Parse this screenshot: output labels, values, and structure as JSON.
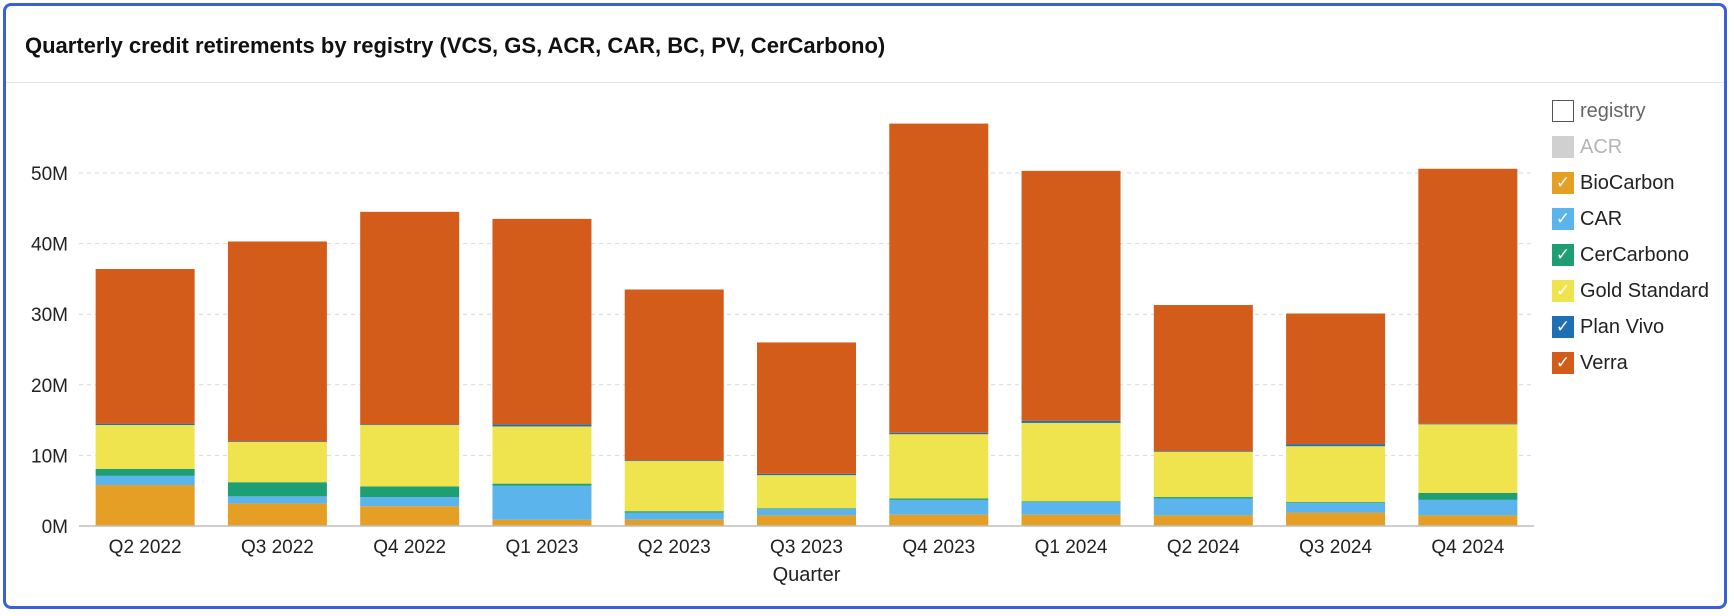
{
  "title": "Quarterly credit retirements by registry (VCS, GS, ACR, CAR, BC, PV, CerCarbono)",
  "legend": {
    "header": "registry",
    "items": [
      {
        "name": "ACR",
        "color": "#d0d0d0",
        "checked": false
      },
      {
        "name": "BioCarbon",
        "color": "#e69f25",
        "checked": true
      },
      {
        "name": "CAR",
        "color": "#5bb4ec",
        "checked": true
      },
      {
        "name": "CerCarbono",
        "color": "#1e9e73",
        "checked": true
      },
      {
        "name": "Gold Standard",
        "color": "#f0e44e",
        "checked": true
      },
      {
        "name": "Plan Vivo",
        "color": "#1f6fb5",
        "checked": true
      },
      {
        "name": "Verra",
        "color": "#d35c1a",
        "checked": true
      }
    ]
  },
  "check_glyph": "✓",
  "chart_data": {
    "type": "bar",
    "stacked": true,
    "xlabel": "Quarter",
    "ylabel": "",
    "ylim": [
      0,
      60
    ],
    "yticks": [
      0,
      10,
      20,
      30,
      40,
      50
    ],
    "ytick_labels": [
      "0M",
      "10M",
      "20M",
      "30M",
      "40M",
      "50M"
    ],
    "grid": true,
    "legend_position": "right",
    "categories": [
      "Q2 2022",
      "Q3 2022",
      "Q4 2022",
      "Q1 2023",
      "Q2 2023",
      "Q3 2023",
      "Q4 2023",
      "Q1 2024",
      "Q2 2024",
      "Q3 2024",
      "Q4 2024"
    ],
    "series": [
      {
        "name": "BioCarbon",
        "color": "#e69f25",
        "values": [
          5.8,
          3.2,
          2.8,
          0.9,
          0.9,
          1.5,
          1.6,
          1.6,
          1.5,
          1.9,
          1.5
        ]
      },
      {
        "name": "CAR",
        "color": "#5bb4ec",
        "values": [
          1.3,
          1.0,
          1.3,
          4.8,
          1.0,
          0.9,
          2.1,
          1.8,
          2.4,
          1.4,
          2.2
        ]
      },
      {
        "name": "CerCarbono",
        "color": "#1e9e73",
        "values": [
          1.0,
          2.0,
          1.5,
          0.3,
          0.2,
          0.1,
          0.2,
          0.1,
          0.2,
          0.1,
          1.0
        ]
      },
      {
        "name": "Gold Standard",
        "color": "#f0e44e",
        "values": [
          6.2,
          5.7,
          8.7,
          8.1,
          7.1,
          4.7,
          9.1,
          11.1,
          6.4,
          7.9,
          9.7
        ]
      },
      {
        "name": "Plan Vivo",
        "color": "#1f6fb5",
        "values": [
          0.2,
          0.1,
          0.1,
          0.3,
          0.1,
          0.2,
          0.2,
          0.3,
          0.1,
          0.3,
          0.1
        ]
      },
      {
        "name": "Verra",
        "color": "#d35c1a",
        "values": [
          21.9,
          28.3,
          30.1,
          29.1,
          24.2,
          18.6,
          43.8,
          35.4,
          20.7,
          18.5,
          36.1
        ]
      }
    ]
  }
}
